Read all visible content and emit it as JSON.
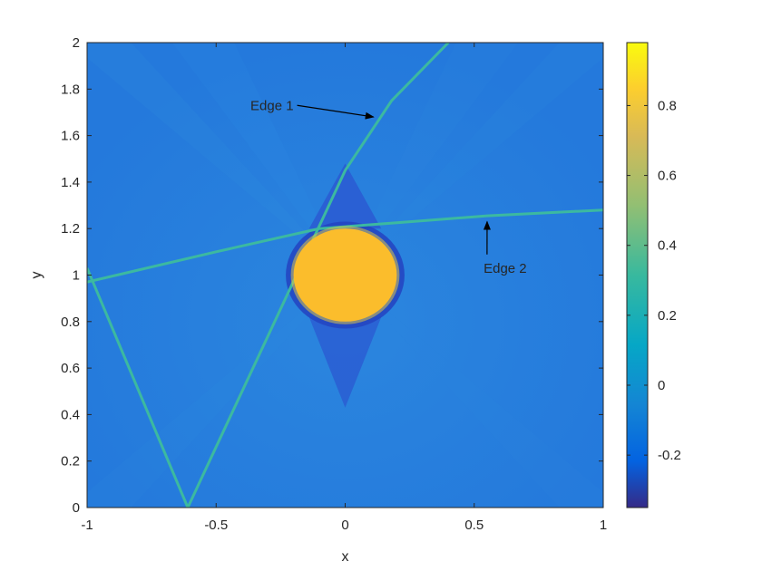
{
  "chart_data": {
    "type": "heatmap",
    "title": "",
    "xlabel": "x",
    "ylabel": "y",
    "xlim": [
      -1,
      1
    ],
    "ylim": [
      0,
      2
    ],
    "x_ticks": [
      -1,
      -0.5,
      0,
      0.5,
      1
    ],
    "x_tick_labels": [
      "-1",
      "-0.5",
      "0",
      "0.5",
      "1"
    ],
    "y_ticks": [
      0,
      0.2,
      0.4,
      0.6,
      0.8,
      1,
      1.2,
      1.4,
      1.6,
      1.8,
      2
    ],
    "y_tick_labels": [
      "0",
      "0.2",
      "0.4",
      "0.6",
      "0.8",
      "1",
      "1.2",
      "1.4",
      "1.6",
      "1.8",
      "2"
    ],
    "colormap": "parula",
    "colorbar": {
      "clim": [
        -0.35,
        0.98
      ],
      "ticks": [
        -0.2,
        0,
        0.2,
        0.4,
        0.6,
        0.8
      ],
      "tick_labels": [
        "-0.2",
        "0",
        "0.2",
        "0.4",
        "0.6",
        "0.8"
      ]
    },
    "features": {
      "disk": {
        "center": [
          0,
          1
        ],
        "rx": 0.2,
        "ry": 0.2,
        "value": 0.85
      },
      "edge1": {
        "points": [
          [
            -1,
            1.03
          ],
          [
            -0.61,
            0.0
          ],
          [
            -0.21,
            0.95
          ],
          [
            0.0,
            1.45
          ],
          [
            0.18,
            1.75
          ],
          [
            0.4,
            2.0
          ]
        ],
        "value": 0.3
      },
      "edge2": {
        "points": [
          [
            -1,
            0.97
          ],
          [
            -0.5,
            1.1
          ],
          [
            -0.1,
            1.2
          ],
          [
            0.2,
            1.225
          ],
          [
            0.55,
            1.255
          ],
          [
            1,
            1.28
          ]
        ],
        "value": 0.3
      },
      "background_value": 0.03
    },
    "annotations": [
      {
        "text": "Edge 1",
        "text_at": [
          -0.2,
          1.73
        ],
        "arrow_to": [
          0.11,
          1.68
        ]
      },
      {
        "text": "Edge 2",
        "text_at": [
          0.62,
          1.03
        ],
        "arrow_to": [
          0.55,
          1.23
        ]
      }
    ]
  }
}
